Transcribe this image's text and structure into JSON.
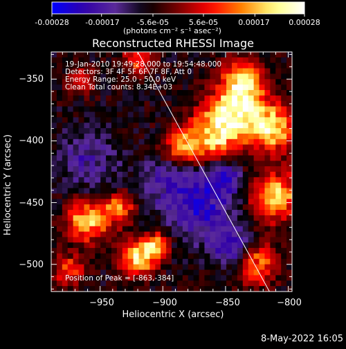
{
  "colorbar": {
    "tick_labels": [
      "-0.00028",
      "-0.00017",
      "-5.6e-05",
      "5.6e-05",
      "0.00017",
      "0.00028"
    ],
    "tick_values": [
      -0.00028,
      -0.00017,
      -5.6e-05,
      5.6e-05,
      0.00017,
      0.00028
    ],
    "range": [
      -0.00028,
      0.00028
    ],
    "units_label": "(photons cm⁻² s⁻¹ asec⁻²)"
  },
  "image": {
    "title": "Reconstructed RHESSI Image",
    "annotation": {
      "time": "19-Jan-2010 19:49:28.000 to 19:54:48.000",
      "detectors": "Detectors: 3F 4F 5F 6F 7F 8F, Att 0",
      "energy": "Energy Range: 25.0 - 50.0 keV",
      "clean": "Clean      Total counts: 8.34E+03"
    },
    "peak_label": "Position of Peak = [-863,-384]"
  },
  "axes": {
    "xlabel": "Heliocentric X (arcsec)",
    "ylabel": "Heliocentric Y (arcsec)",
    "xticks": [
      -950,
      -900,
      -850,
      -800
    ],
    "xtick_labels": [
      "−950",
      "−900",
      "−850",
      "−800"
    ],
    "yticks": [
      -350,
      -400,
      -450,
      -500
    ],
    "ytick_labels": [
      "−350",
      "−400",
      "−450",
      "−500"
    ]
  },
  "footer": {
    "date": "8-May-2022 16:05"
  },
  "chart_data": {
    "type": "heatmap",
    "title": "Reconstructed RHESSI Image",
    "xlabel": "Heliocentric X (arcsec)",
    "ylabel": "Heliocentric Y (arcsec)",
    "xlim": [
      -989,
      -797
    ],
    "ylim": [
      -522,
      -328
    ],
    "colorbar_range": [
      -0.00028,
      0.00028
    ],
    "colorbar_unit": "(photons cm⁻² s⁻¹ asec⁻²)",
    "colormap": [
      "#0000ff",
      "#3000a8",
      "#5a2a9a",
      "#000000",
      "#7a0000",
      "#ff0000",
      "#ff8000",
      "#ffff80",
      "#ffffff"
    ],
    "peak_position": [
      -863,
      -384
    ],
    "limb_line": [
      [
        -920,
        -328
      ],
      [
        -815,
        -522
      ]
    ],
    "emission_regions": [
      {
        "x": -840,
        "y": -375,
        "r": 22,
        "amp": 1.0
      },
      {
        "x": -812,
        "y": -390,
        "r": 18,
        "amp": 0.95
      },
      {
        "x": -860,
        "y": -395,
        "r": 20,
        "amp": 0.85
      },
      {
        "x": -885,
        "y": -405,
        "r": 14,
        "amp": 0.7
      },
      {
        "x": -835,
        "y": -350,
        "r": 16,
        "amp": 0.75
      },
      {
        "x": -810,
        "y": -445,
        "r": 20,
        "amp": 0.85
      },
      {
        "x": -825,
        "y": -500,
        "r": 16,
        "amp": 0.7
      },
      {
        "x": -960,
        "y": -465,
        "r": 16,
        "amp": 0.95
      },
      {
        "x": -935,
        "y": -455,
        "r": 12,
        "amp": 0.7
      },
      {
        "x": -920,
        "y": -495,
        "r": 14,
        "amp": 1.0
      },
      {
        "x": -905,
        "y": -485,
        "r": 10,
        "amp": 0.8
      },
      {
        "x": -975,
        "y": -505,
        "r": 12,
        "amp": 0.6
      },
      {
        "x": -965,
        "y": -352,
        "r": 10,
        "amp": 0.5
      },
      {
        "x": -920,
        "y": -335,
        "r": 12,
        "amp": 0.5
      }
    ],
    "negative_regions": [
      {
        "x": -870,
        "y": -450,
        "r": 28,
        "amp": -0.55
      },
      {
        "x": -960,
        "y": -415,
        "r": 24,
        "amp": -0.35
      },
      {
        "x": -845,
        "y": -485,
        "r": 16,
        "amp": -0.5
      },
      {
        "x": -900,
        "y": -430,
        "r": 18,
        "amp": -0.3
      },
      {
        "x": -850,
        "y": -430,
        "r": 12,
        "amp": -0.45
      }
    ]
  }
}
